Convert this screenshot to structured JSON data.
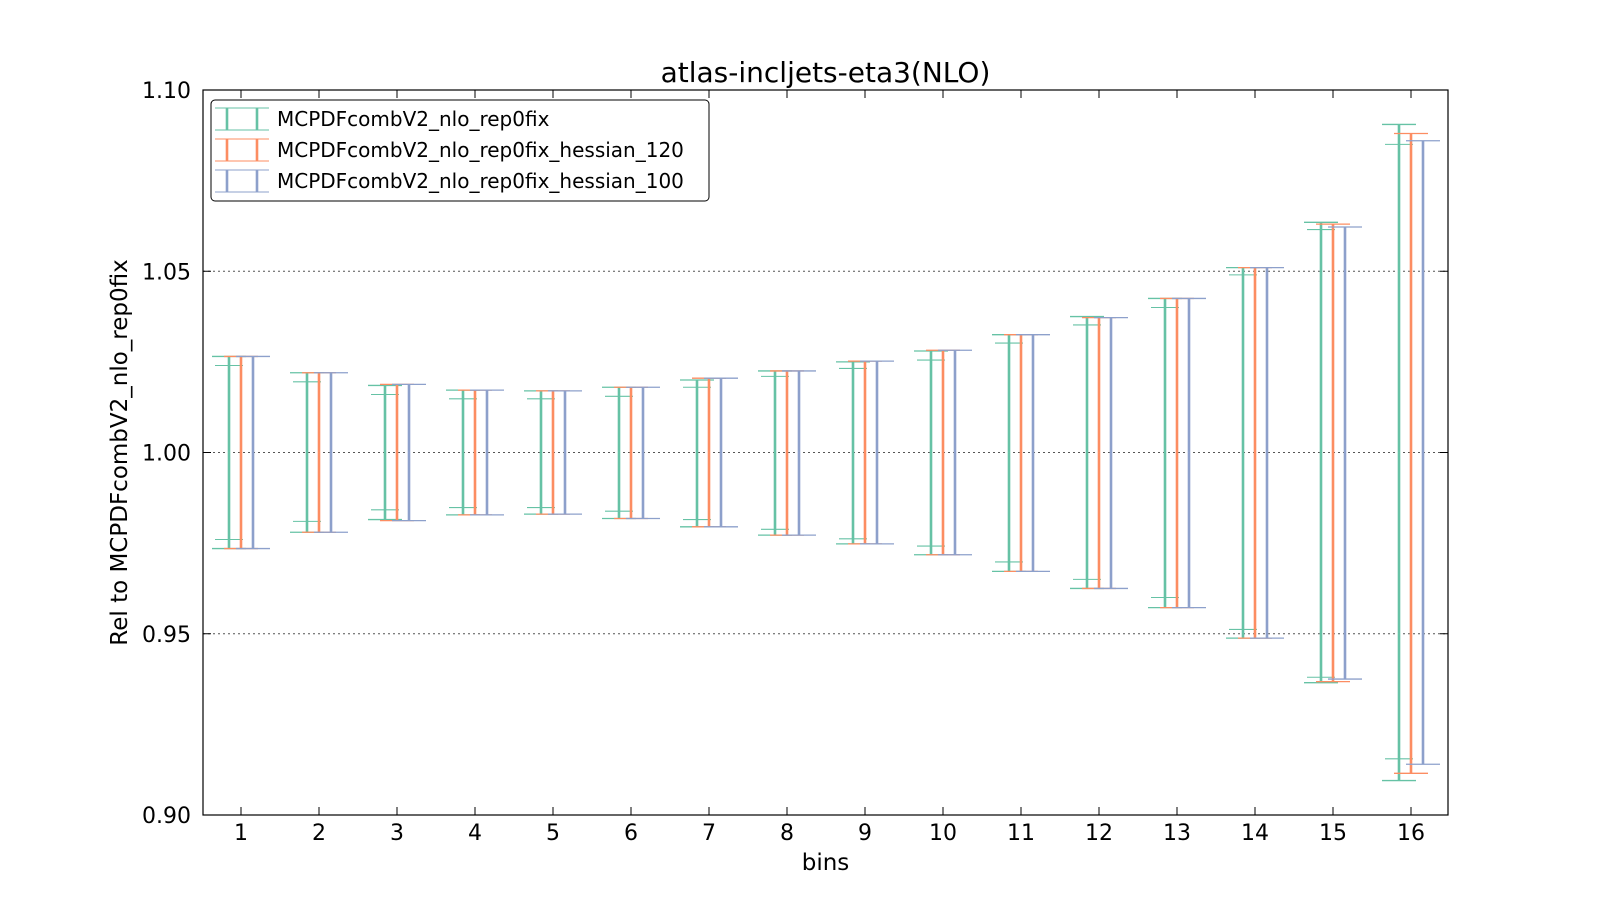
{
  "chart_data": {
    "type": "errorbar",
    "title": "atlas-incljets-eta3(NLO)",
    "xlabel": "bins",
    "ylabel": "Rel to MCPDFcombV2_nlo_rep0fix",
    "ylim": [
      0.9,
      1.1
    ],
    "yticks": [
      "0.90",
      "0.95",
      "1.00",
      "1.05",
      "1.10"
    ],
    "grid": "horizontal dotted",
    "legend_position": "top-left",
    "categories": [
      "1",
      "2",
      "3",
      "4",
      "5",
      "6",
      "7",
      "8",
      "9",
      "10",
      "11",
      "12",
      "13",
      "14",
      "15",
      "16"
    ],
    "series": [
      {
        "name": "MCPDFcombV2_nlo_rep0fix",
        "color": "#66c2a5",
        "upper": [
          1.0265,
          1.022,
          1.0185,
          1.0172,
          1.017,
          1.018,
          1.02,
          1.0225,
          1.025,
          1.028,
          1.0325,
          1.0375,
          1.0425,
          1.051,
          1.0635,
          1.0905
        ],
        "lower": [
          0.9735,
          0.978,
          0.9815,
          0.9828,
          0.983,
          0.9818,
          0.9795,
          0.9772,
          0.9748,
          0.9718,
          0.9672,
          0.9625,
          0.9572,
          0.9488,
          0.9365,
          0.9095
        ],
        "inner_upper": [
          1.024,
          1.0195,
          1.016,
          1.0148,
          1.0148,
          1.0155,
          1.018,
          1.021,
          1.0232,
          1.0255,
          1.0302,
          1.0352,
          1.04,
          1.049,
          1.0615,
          1.085
        ],
        "inner_lower": [
          0.976,
          0.981,
          0.9842,
          0.9848,
          0.9848,
          0.9838,
          0.9815,
          0.9788,
          0.9762,
          0.9742,
          0.9698,
          0.965,
          0.96,
          0.9512,
          0.938,
          0.9155
        ]
      },
      {
        "name": "MCPDFcombV2_nlo_rep0fix_hessian_120",
        "color": "#fc8d62",
        "upper": [
          1.0265,
          1.022,
          1.0188,
          1.0172,
          1.017,
          1.018,
          1.0205,
          1.0225,
          1.0252,
          1.0282,
          1.0325,
          1.0372,
          1.0425,
          1.051,
          1.063,
          1.088
        ],
        "lower": [
          0.9735,
          0.978,
          0.9812,
          0.9828,
          0.983,
          0.9818,
          0.9795,
          0.9772,
          0.9748,
          0.9718,
          0.9672,
          0.9625,
          0.9572,
          0.9488,
          0.9368,
          0.9115
        ]
      },
      {
        "name": "MCPDFcombV2_nlo_rep0fix_hessian_100",
        "color": "#8da0cb",
        "upper": [
          1.0265,
          1.022,
          1.0188,
          1.0172,
          1.017,
          1.018,
          1.0205,
          1.0225,
          1.0252,
          1.0282,
          1.0325,
          1.0372,
          1.0425,
          1.051,
          1.0622,
          1.086
        ],
        "lower": [
          0.9735,
          0.978,
          0.9812,
          0.9828,
          0.983,
          0.9818,
          0.9795,
          0.9772,
          0.9748,
          0.9718,
          0.9672,
          0.9625,
          0.9572,
          0.9488,
          0.9375,
          0.914
        ]
      }
    ]
  }
}
